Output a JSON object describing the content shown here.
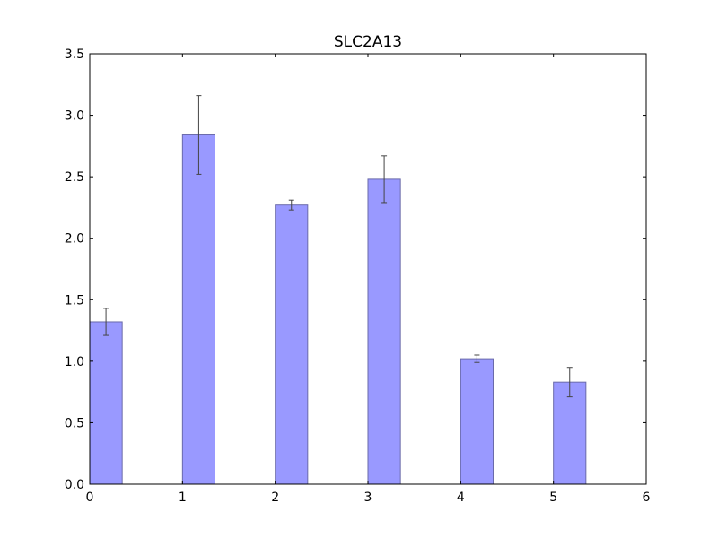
{
  "chart_data": {
    "type": "bar",
    "title": "SLC2A13",
    "xlabel": "",
    "ylabel": "",
    "xlim": [
      0,
      6
    ],
    "ylim": [
      0,
      3.5
    ],
    "bar_width": 0.35,
    "x": [
      0,
      1,
      2,
      3,
      4,
      5
    ],
    "values": [
      1.32,
      2.84,
      2.27,
      2.48,
      1.02,
      0.83
    ],
    "errors": [
      0.11,
      0.32,
      0.04,
      0.19,
      0.03,
      0.12
    ],
    "x_ticks": [
      0,
      1,
      2,
      3,
      4,
      5,
      6
    ],
    "x_tick_labels": [
      "0",
      "1",
      "2",
      "3",
      "4",
      "5",
      "6"
    ],
    "y_ticks": [
      0,
      0.5,
      1,
      1.5,
      2,
      2.5,
      3,
      3.5
    ],
    "y_tick_labels": [
      "0.0",
      "0.5",
      "1.0",
      "1.5",
      "2.0",
      "2.5",
      "3.0",
      "3.5"
    ],
    "grid": false,
    "legend": "none",
    "colors": {
      "bar_fill": "#9999ff",
      "bar_edge": "#6a6aaa",
      "error_bar": "#444444",
      "axes": "#000000"
    }
  }
}
